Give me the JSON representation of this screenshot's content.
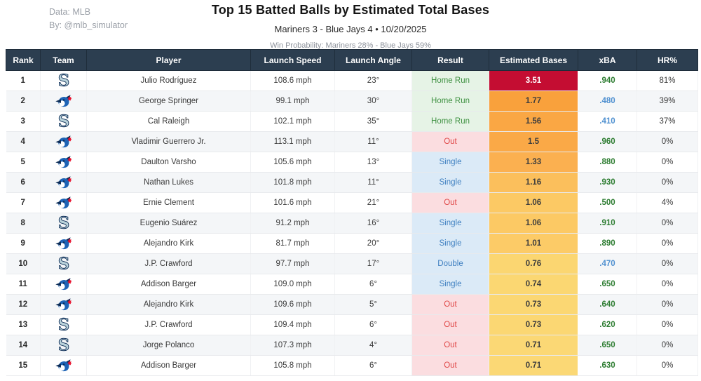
{
  "credits": {
    "line1": "Data: MLB",
    "line2": "By: @mlb_simulator"
  },
  "colors": {
    "header_bg": "#2c3e50",
    "row_alt_bg": "#f4f6f8",
    "xba_green": "#2e7d32",
    "xba_blue": "#4f90d0",
    "result_styles": {
      "home_run": {
        "bg": "#e6f3e6",
        "text": "#3f9142"
      },
      "single": {
        "bg": "#dbeaf7",
        "text": "#3e7fc0"
      },
      "double": {
        "bg": "#dbeaf7",
        "text": "#3e7fc0"
      },
      "out": {
        "bg": "#fbdde0",
        "text": "#e04848"
      }
    },
    "mariners_logo": {
      "fill": "#b9d2da",
      "outline": "#0c2c56"
    },
    "blue_jays_logo": {
      "blue": "#1d63b5",
      "navy": "#0c2c56",
      "leaf": "#e8112d"
    }
  },
  "chart_data": {
    "type": "table",
    "title": "Top 15 Batted Balls by Estimated Total Bases",
    "subtitle": "Mariners 3 - Blue Jays 4  •  10/20/2025",
    "win_probability": "Win Probability: Mariners 28% - Blue Jays 59%",
    "columns": [
      "Rank",
      "Team",
      "Player",
      "Launch Speed",
      "Launch Angle",
      "Result",
      "Estimated Bases",
      "xBA",
      "HR%"
    ],
    "rows": [
      {
        "rank": "1",
        "team": "mariners",
        "player": "Julio Rodríguez",
        "launch_speed": "108.6 mph",
        "launch_angle": "23°",
        "result": "Home Run",
        "result_type": "home_run",
        "estimated_bases": "3.51",
        "bases_bg": "#c40d32",
        "bases_fg": "#ffffff",
        "xba": ".940",
        "xba_tone": "green",
        "hr_pct": "81%"
      },
      {
        "rank": "2",
        "team": "bluejays",
        "player": "George Springer",
        "launch_speed": "99.1 mph",
        "launch_angle": "30°",
        "result": "Home Run",
        "result_type": "home_run",
        "estimated_bases": "1.77",
        "bases_bg": "#f9a13c",
        "bases_fg": "#3d3d3d",
        "xba": ".480",
        "xba_tone": "blue",
        "hr_pct": "39%"
      },
      {
        "rank": "3",
        "team": "mariners",
        "player": "Cal Raleigh",
        "launch_speed": "102.1 mph",
        "launch_angle": "35°",
        "result": "Home Run",
        "result_type": "home_run",
        "estimated_bases": "1.56",
        "bases_bg": "#faa744",
        "bases_fg": "#3d3d3d",
        "xba": ".410",
        "xba_tone": "blue",
        "hr_pct": "37%"
      },
      {
        "rank": "4",
        "team": "bluejays",
        "player": "Vladimir Guerrero Jr.",
        "launch_speed": "113.1 mph",
        "launch_angle": "11°",
        "result": "Out",
        "result_type": "out",
        "estimated_bases": "1.5",
        "bases_bg": "#faa947",
        "bases_fg": "#3d3d3d",
        "xba": ".960",
        "xba_tone": "green",
        "hr_pct": "0%"
      },
      {
        "rank": "5",
        "team": "bluejays",
        "player": "Daulton Varsho",
        "launch_speed": "105.6 mph",
        "launch_angle": "13°",
        "result": "Single",
        "result_type": "single",
        "estimated_bases": "1.33",
        "bases_bg": "#fbb050",
        "bases_fg": "#3d3d3d",
        "xba": ".880",
        "xba_tone": "green",
        "hr_pct": "0%"
      },
      {
        "rank": "6",
        "team": "bluejays",
        "player": "Nathan Lukes",
        "launch_speed": "101.8 mph",
        "launch_angle": "11°",
        "result": "Single",
        "result_type": "single",
        "estimated_bases": "1.16",
        "bases_bg": "#fbbf5c",
        "bases_fg": "#3d3d3d",
        "xba": ".930",
        "xba_tone": "green",
        "hr_pct": "0%"
      },
      {
        "rank": "7",
        "team": "bluejays",
        "player": "Ernie Clement",
        "launch_speed": "101.6 mph",
        "launch_angle": "21°",
        "result": "Out",
        "result_type": "out",
        "estimated_bases": "1.06",
        "bases_bg": "#fcc964",
        "bases_fg": "#3d3d3d",
        "xba": ".500",
        "xba_tone": "green",
        "hr_pct": "4%"
      },
      {
        "rank": "8",
        "team": "mariners",
        "player": "Eugenio Suárez",
        "launch_speed": "91.2 mph",
        "launch_angle": "16°",
        "result": "Single",
        "result_type": "single",
        "estimated_bases": "1.06",
        "bases_bg": "#fcc964",
        "bases_fg": "#3d3d3d",
        "xba": ".910",
        "xba_tone": "green",
        "hr_pct": "0%"
      },
      {
        "rank": "9",
        "team": "bluejays",
        "player": "Alejandro Kirk",
        "launch_speed": "81.7 mph",
        "launch_angle": "20°",
        "result": "Single",
        "result_type": "single",
        "estimated_bases": "1.01",
        "bases_bg": "#fccb67",
        "bases_fg": "#3d3d3d",
        "xba": ".890",
        "xba_tone": "green",
        "hr_pct": "0%"
      },
      {
        "rank": "10",
        "team": "mariners",
        "player": "J.P. Crawford",
        "launch_speed": "97.7 mph",
        "launch_angle": "17°",
        "result": "Double",
        "result_type": "double",
        "estimated_bases": "0.76",
        "bases_bg": "#fbd671",
        "bases_fg": "#3d3d3d",
        "xba": ".470",
        "xba_tone": "blue",
        "hr_pct": "0%"
      },
      {
        "rank": "11",
        "team": "bluejays",
        "player": "Addison Barger",
        "launch_speed": "109.0 mph",
        "launch_angle": "6°",
        "result": "Single",
        "result_type": "single",
        "estimated_bases": "0.74",
        "bases_bg": "#fbd772",
        "bases_fg": "#3d3d3d",
        "xba": ".650",
        "xba_tone": "green",
        "hr_pct": "0%"
      },
      {
        "rank": "12",
        "team": "bluejays",
        "player": "Alejandro Kirk",
        "launch_speed": "109.6 mph",
        "launch_angle": "5°",
        "result": "Out",
        "result_type": "out",
        "estimated_bases": "0.73",
        "bases_bg": "#fbd773",
        "bases_fg": "#3d3d3d",
        "xba": ".640",
        "xba_tone": "green",
        "hr_pct": "0%"
      },
      {
        "rank": "13",
        "team": "mariners",
        "player": "J.P. Crawford",
        "launch_speed": "109.4 mph",
        "launch_angle": "6°",
        "result": "Out",
        "result_type": "out",
        "estimated_bases": "0.73",
        "bases_bg": "#fbd773",
        "bases_fg": "#3d3d3d",
        "xba": ".620",
        "xba_tone": "green",
        "hr_pct": "0%"
      },
      {
        "rank": "14",
        "team": "mariners",
        "player": "Jorge Polanco",
        "launch_speed": "107.3 mph",
        "launch_angle": "4°",
        "result": "Out",
        "result_type": "out",
        "estimated_bases": "0.71",
        "bases_bg": "#fbd875",
        "bases_fg": "#3d3d3d",
        "xba": ".650",
        "xba_tone": "green",
        "hr_pct": "0%"
      },
      {
        "rank": "15",
        "team": "bluejays",
        "player": "Addison Barger",
        "launch_speed": "105.8 mph",
        "launch_angle": "6°",
        "result": "Out",
        "result_type": "out",
        "estimated_bases": "0.71",
        "bases_bg": "#fbd875",
        "bases_fg": "#3d3d3d",
        "xba": ".630",
        "xba_tone": "green",
        "hr_pct": "0%"
      }
    ]
  }
}
